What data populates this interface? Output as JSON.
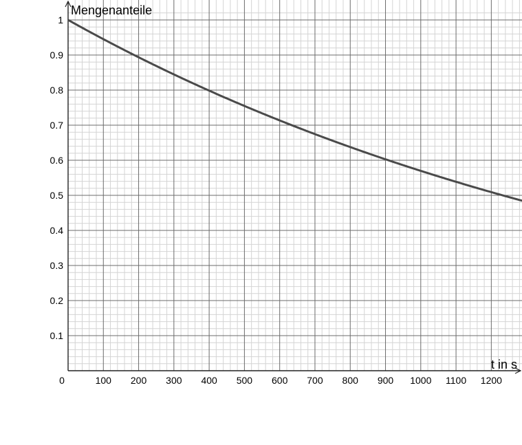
{
  "chart_data": {
    "type": "line",
    "title": "",
    "xlabel": "t in s",
    "ylabel": "Mengenanteile",
    "xlim": [
      0,
      1290
    ],
    "ylim": [
      0,
      1.02
    ],
    "x_ticks": [
      100,
      200,
      300,
      400,
      500,
      600,
      700,
      800,
      900,
      1000,
      1100,
      1200
    ],
    "x_tick_labels": [
      "100",
      "200",
      "300",
      "400",
      "500",
      "600",
      "700",
      "800",
      "900",
      "1000",
      "1100",
      "1200"
    ],
    "y_ticks": [
      0.1,
      0.2,
      0.3,
      0.4,
      0.5,
      0.6,
      0.7,
      0.8,
      0.9,
      1
    ],
    "y_tick_labels": [
      "0.1",
      "0.2",
      "0.3",
      "0.4",
      "0.5",
      "0.6",
      "0.7",
      "0.8",
      "0.9",
      "1"
    ],
    "origin_label": "0",
    "grid": true,
    "series": [
      {
        "color": "#4a4a4a",
        "x": [
          0,
          100,
          200,
          300,
          400,
          500,
          600,
          700,
          800,
          900,
          1000,
          1100,
          1200,
          1290
        ],
        "y": [
          1.0,
          0.945,
          0.893,
          0.844,
          0.798,
          0.755,
          0.713,
          0.674,
          0.637,
          0.602,
          0.569,
          0.538,
          0.509,
          0.484
        ]
      }
    ]
  }
}
